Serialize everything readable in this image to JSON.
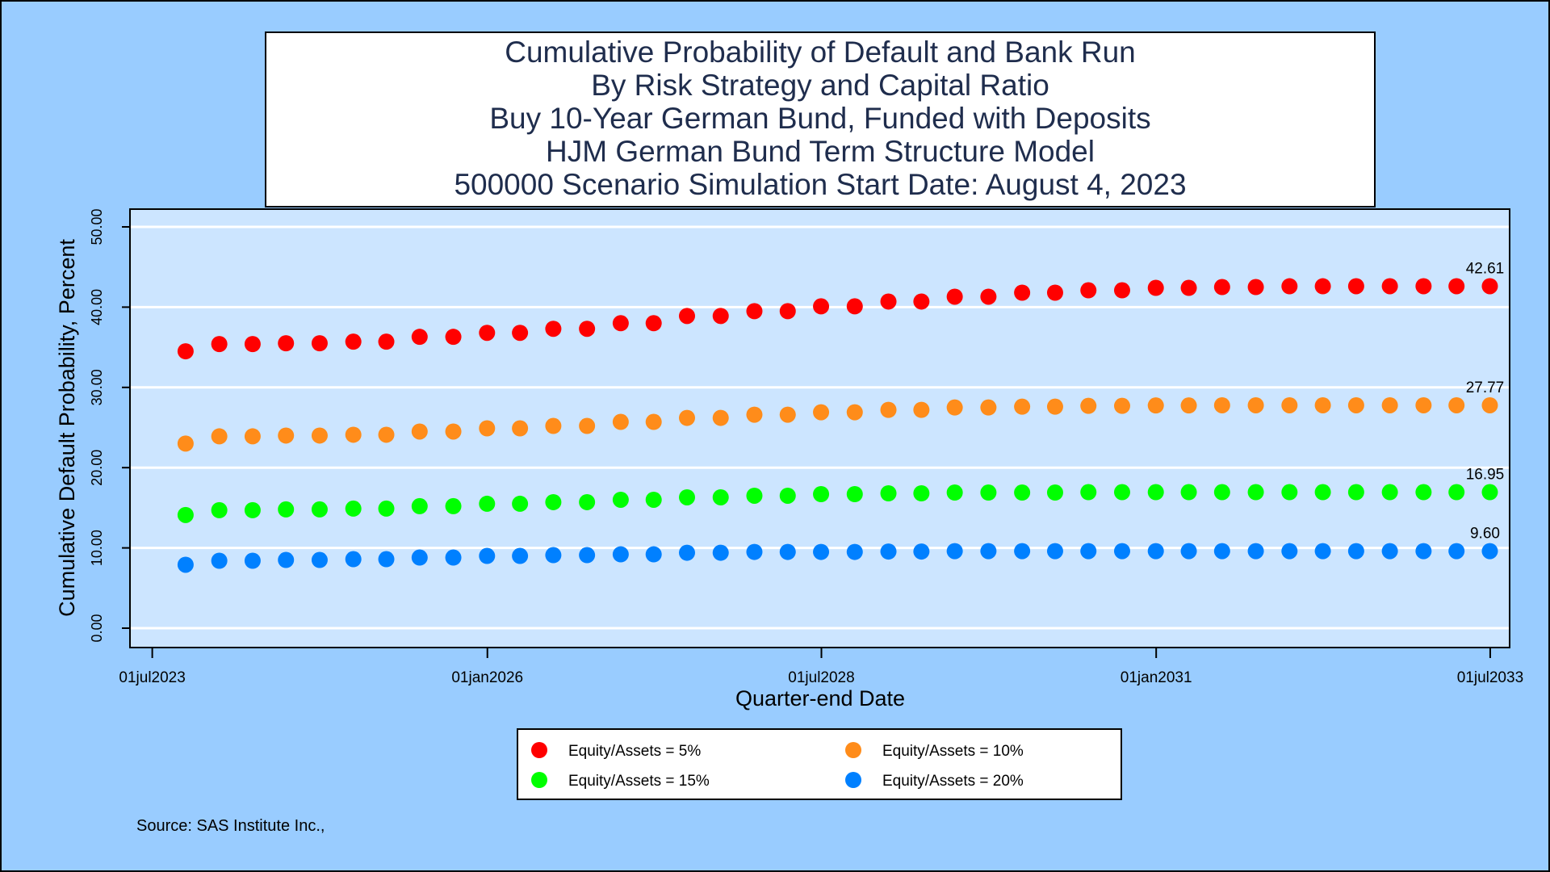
{
  "chart_data": {
    "type": "scatter",
    "title_lines": [
      "Cumulative Probability of Default and Bank Run",
      "By Risk Strategy and Capital Ratio",
      "Buy 10-Year German Bund, Funded with Deposits",
      "HJM German Bund Term Structure Model",
      "500000 Scenario Simulation Start Date: August 4, 2023"
    ],
    "xlabel": "Quarter-end Date",
    "ylabel": "Cumulative Default Probability, Percent",
    "ylim": [
      0,
      50
    ],
    "y_ticks": [
      "0.00",
      "10.00",
      "20.00",
      "30.00",
      "40.00",
      "50.00"
    ],
    "x_ticks": [
      "01jul2023",
      "01jan2026",
      "01jul2028",
      "01jan2031",
      "01jul2033"
    ],
    "x_tick_dates": [
      "2023-07-01",
      "2026-01-01",
      "2028-07-01",
      "2031-01-01",
      "2033-07-01"
    ],
    "xlim": [
      "2023-06-01",
      "2033-08-01"
    ],
    "x": [
      "2023-09-30",
      "2023-12-31",
      "2024-03-31",
      "2024-06-30",
      "2024-09-30",
      "2024-12-31",
      "2025-03-31",
      "2025-06-30",
      "2025-09-30",
      "2025-12-31",
      "2026-03-31",
      "2026-06-30",
      "2026-09-30",
      "2026-12-31",
      "2027-03-31",
      "2027-06-30",
      "2027-09-30",
      "2027-12-31",
      "2028-03-31",
      "2028-06-30",
      "2028-09-30",
      "2028-12-31",
      "2029-03-31",
      "2029-06-30",
      "2029-09-30",
      "2029-12-31",
      "2030-03-31",
      "2030-06-30",
      "2030-09-30",
      "2030-12-31",
      "2031-03-31",
      "2031-06-30",
      "2031-09-30",
      "2031-12-31",
      "2032-03-31",
      "2032-06-30",
      "2032-09-30",
      "2032-12-31",
      "2033-03-31",
      "2033-06-30"
    ],
    "grid": true,
    "legend_position": "bottom",
    "series": [
      {
        "name": "Equity/Assets = 5%",
        "color": "#ff0000",
        "values": [
          34.5,
          35.4,
          35.4,
          35.5,
          35.5,
          35.7,
          35.7,
          36.3,
          36.3,
          36.8,
          36.8,
          37.3,
          37.3,
          38.0,
          38.0,
          38.9,
          38.9,
          39.5,
          39.5,
          40.1,
          40.1,
          40.7,
          40.7,
          41.3,
          41.3,
          41.8,
          41.8,
          42.1,
          42.1,
          42.4,
          42.4,
          42.5,
          42.5,
          42.6,
          42.6,
          42.61,
          42.61,
          42.61,
          42.61,
          42.61
        ],
        "end_label": "42.61"
      },
      {
        "name": "Equity/Assets = 10%",
        "color": "#ff8c1a",
        "values": [
          23.0,
          23.9,
          23.9,
          24.0,
          24.0,
          24.1,
          24.1,
          24.5,
          24.5,
          24.9,
          24.9,
          25.2,
          25.2,
          25.7,
          25.7,
          26.2,
          26.2,
          26.6,
          26.6,
          26.9,
          26.9,
          27.2,
          27.2,
          27.5,
          27.5,
          27.6,
          27.6,
          27.7,
          27.7,
          27.75,
          27.75,
          27.77,
          27.77,
          27.77,
          27.77,
          27.77,
          27.77,
          27.77,
          27.77,
          27.77
        ],
        "end_label": "27.77"
      },
      {
        "name": "Equity/Assets = 15%",
        "color": "#00ff00",
        "values": [
          14.1,
          14.7,
          14.7,
          14.8,
          14.8,
          14.9,
          14.9,
          15.2,
          15.2,
          15.5,
          15.5,
          15.7,
          15.7,
          16.0,
          16.0,
          16.3,
          16.3,
          16.5,
          16.5,
          16.7,
          16.7,
          16.8,
          16.8,
          16.9,
          16.9,
          16.9,
          16.9,
          16.95,
          16.95,
          16.95,
          16.95,
          16.95,
          16.95,
          16.95,
          16.95,
          16.95,
          16.95,
          16.95,
          16.95,
          16.95
        ],
        "end_label": "16.95"
      },
      {
        "name": "Equity/Assets = 20%",
        "color": "#0080ff",
        "values": [
          7.9,
          8.4,
          8.4,
          8.5,
          8.5,
          8.6,
          8.6,
          8.8,
          8.8,
          9.0,
          9.0,
          9.1,
          9.1,
          9.2,
          9.2,
          9.4,
          9.4,
          9.5,
          9.5,
          9.5,
          9.5,
          9.55,
          9.55,
          9.6,
          9.6,
          9.6,
          9.6,
          9.6,
          9.6,
          9.6,
          9.6,
          9.6,
          9.6,
          9.6,
          9.6,
          9.6,
          9.6,
          9.6,
          9.6,
          9.6
        ],
        "end_label": "9.60"
      }
    ],
    "source": "Source: SAS Institute Inc.,"
  },
  "colors": {
    "page_background": "#99ccff",
    "plot_background": "#cce5ff",
    "grid": "#ffffff",
    "text": "#1f2d4d"
  }
}
